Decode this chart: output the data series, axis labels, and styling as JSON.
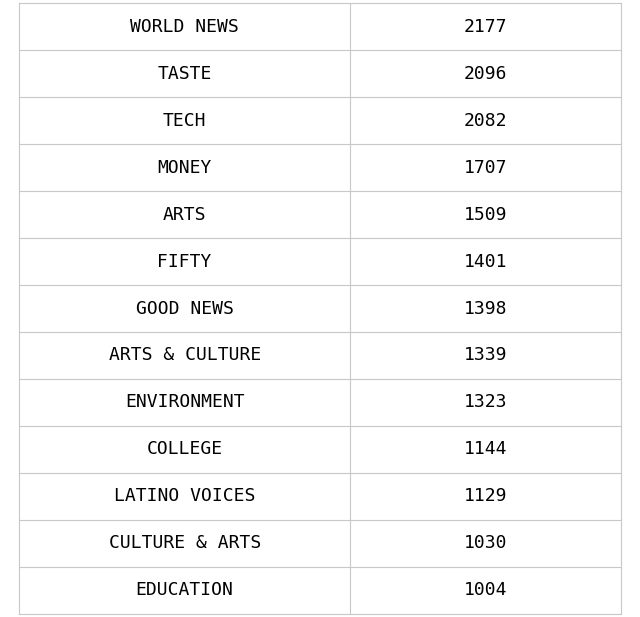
{
  "rows": [
    [
      "WORLD NEWS",
      "2177"
    ],
    [
      "TASTE",
      "2096"
    ],
    [
      "TECH",
      "2082"
    ],
    [
      "MONEY",
      "1707"
    ],
    [
      "ARTS",
      "1509"
    ],
    [
      "FIFTY",
      "1401"
    ],
    [
      "GOOD NEWS",
      "1398"
    ],
    [
      "ARTS & CULTURE",
      "1339"
    ],
    [
      "ENVIRONMENT",
      "1323"
    ],
    [
      "COLLEGE",
      "1144"
    ],
    [
      "LATINO VOICES",
      "1129"
    ],
    [
      "CULTURE & ARTS",
      "1030"
    ],
    [
      "EDUCATION",
      "1004"
    ]
  ],
  "bg_color": "#ffffff",
  "grid_color": "#c8c8c8",
  "text_color": "#000000",
  "font_family": "monospace",
  "font_size": 13,
  "col_split": 0.55,
  "fig_width": 6.4,
  "fig_height": 6.17
}
